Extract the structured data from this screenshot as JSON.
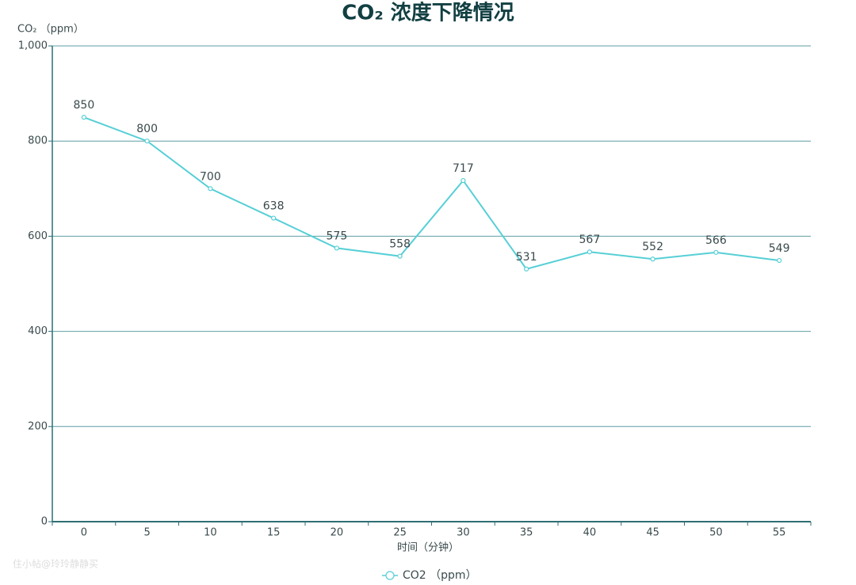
{
  "chart_data": {
    "type": "line",
    "title": "CO₂ 浓度下降情况",
    "y_axis_label": "CO₂ （ppm）",
    "x_axis_label": "时间（分钟）",
    "categories": [
      "0",
      "5",
      "10",
      "15",
      "20",
      "25",
      "30",
      "35",
      "40",
      "45",
      "50",
      "55"
    ],
    "series": [
      {
        "name": "CO2 （ppm）",
        "color": "#56cfd6",
        "values": [
          850,
          800,
          700,
          638,
          575,
          558,
          717,
          531,
          567,
          552,
          566,
          549
        ]
      }
    ],
    "ylim": [
      0,
      1000
    ],
    "yticks": [
      0,
      200,
      400,
      600,
      800,
      {
        "value": 1000,
        "label": "1,000"
      }
    ],
    "grid": true,
    "legend": "bottom",
    "watermark": "住小帖@玲玲静静买"
  }
}
